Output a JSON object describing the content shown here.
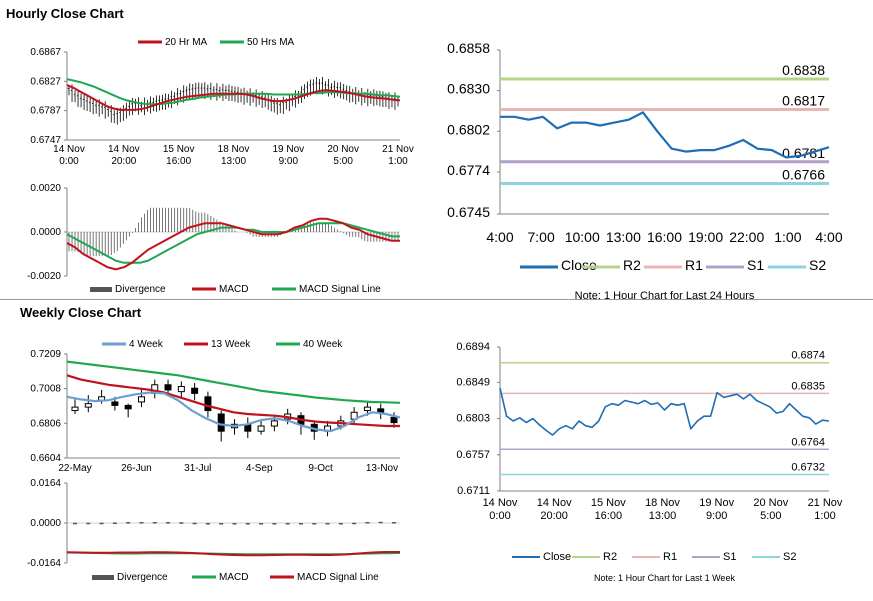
{
  "sections": {
    "hourly_title": "Hourly Close Chart",
    "weekly_title": "Weekly Close Chart"
  },
  "colors": {
    "ma20": "#c0121c",
    "ma50": "#1fa84f",
    "divergence": "#555555",
    "macd": "#c0121c",
    "signal": "#1fa84f",
    "close": "#1f6db3",
    "r2": "#b7d38a",
    "r1": "#e8b4b4",
    "s1": "#b1a0c7",
    "s2": "#8fd3e0",
    "w4": "#6d9ecf",
    "w13": "#c0121c",
    "w40": "#1fa84f"
  },
  "chart_data": [
    {
      "id": "hourly_price",
      "type": "candlestick",
      "legend": [
        "20 Hr MA",
        "50 Hrs MA"
      ],
      "y_ticks": [
        "0.6867",
        "0.6827",
        "0.6787",
        "0.6747"
      ],
      "ylim": [
        0.6747,
        0.6867
      ],
      "x_ticks": [
        {
          "l1": "14 Nov",
          "l2": "0:00"
        },
        {
          "l1": "14 Nov",
          "l2": "20:00"
        },
        {
          "l1": "15 Nov",
          "l2": "16:00"
        },
        {
          "l1": "18 Nov",
          "l2": "13:00"
        },
        {
          "l1": "19 Nov",
          "l2": "9:00"
        },
        {
          "l1": "20 Nov",
          "l2": "5:00"
        },
        {
          "l1": "21 Nov",
          "l2": "1:00"
        }
      ],
      "price": [
        0.6815,
        0.6806,
        0.68,
        0.6796,
        0.6792,
        0.679,
        0.6786,
        0.6778,
        0.6782,
        0.6789,
        0.6795,
        0.6792,
        0.6794,
        0.6796,
        0.6798,
        0.68,
        0.6804,
        0.6808,
        0.6812,
        0.6814,
        0.6815,
        0.6814,
        0.6813,
        0.6812,
        0.6812,
        0.681,
        0.6808,
        0.6806,
        0.6805,
        0.6803,
        0.6801,
        0.6795,
        0.6792,
        0.6796,
        0.6801,
        0.6806,
        0.6815,
        0.682,
        0.6822,
        0.682,
        0.6816,
        0.6816,
        0.6812,
        0.6808,
        0.6807,
        0.6805,
        0.6805,
        0.6804,
        0.6802,
        0.68,
        0.68
      ],
      "ma20": [
        0.6822,
        0.6818,
        0.6813,
        0.6808,
        0.6803,
        0.6798,
        0.6793,
        0.679,
        0.6788,
        0.6788,
        0.6788,
        0.6789,
        0.6791,
        0.6794,
        0.6797,
        0.68,
        0.6802,
        0.6804,
        0.6806,
        0.6807,
        0.6808,
        0.6809,
        0.681,
        0.681,
        0.681,
        0.681,
        0.681,
        0.6809,
        0.6807,
        0.6804,
        0.6802,
        0.68,
        0.68,
        0.6801,
        0.6803,
        0.6806,
        0.6809,
        0.6812,
        0.6814,
        0.6815,
        0.6814,
        0.6813,
        0.6812,
        0.681,
        0.6808,
        0.6806,
        0.6805,
        0.6804,
        0.6803,
        0.6802,
        0.6801
      ],
      "ma50": [
        0.683,
        0.6828,
        0.6826,
        0.6823,
        0.682,
        0.6816,
        0.6812,
        0.6808,
        0.6804,
        0.6801,
        0.6799,
        0.6797,
        0.6796,
        0.6796,
        0.6796,
        0.6797,
        0.6798,
        0.68,
        0.6802,
        0.6803,
        0.6805,
        0.6806,
        0.6807,
        0.6808,
        0.6809,
        0.6809,
        0.681,
        0.681,
        0.681,
        0.681,
        0.681,
        0.6809,
        0.6809,
        0.6809,
        0.6809,
        0.6809,
        0.681,
        0.6811,
        0.6811,
        0.6812,
        0.6812,
        0.6812,
        0.6811,
        0.6811,
        0.681,
        0.681,
        0.6809,
        0.6808,
        0.6808,
        0.6807,
        0.6806
      ]
    },
    {
      "id": "hourly_macd",
      "type": "macd",
      "legend": [
        "Divergence",
        "MACD",
        "MACD Signal Line"
      ],
      "y_ticks": [
        "0.0020",
        "0.0000",
        "-0.0020"
      ],
      "ylim": [
        -0.002,
        0.002
      ],
      "macd": [
        -0.0005,
        -0.0007,
        -0.001,
        -0.0012,
        -0.0014,
        -0.0016,
        -0.0017,
        -0.0016,
        -0.0014,
        -0.0011,
        -0.0008,
        -0.0006,
        -0.0004,
        -0.0002,
        0.0,
        0.0002,
        0.0003,
        0.0004,
        0.0004,
        0.0004,
        0.0003,
        0.0002,
        0.0001,
        0.0,
        -0.0001,
        -0.0001,
        -0.0001,
        0.0,
        0.0002,
        0.0003,
        0.0005,
        0.0006,
        0.0006,
        0.0005,
        0.0004,
        0.0002,
        0.0001,
        -0.0001,
        -0.0002,
        -0.0003,
        -0.0004,
        -0.0004
      ],
      "signal": [
        -0.0001,
        -0.0003,
        -0.0005,
        -0.0007,
        -0.0009,
        -0.0011,
        -0.0013,
        -0.0014,
        -0.0014,
        -0.0014,
        -0.0013,
        -0.0011,
        -0.0009,
        -0.0007,
        -0.0005,
        -0.0003,
        -0.0001,
        0.0,
        0.0001,
        0.0002,
        0.0002,
        0.0002,
        0.0001,
        0.0001,
        0.0,
        0.0,
        0.0,
        0.0,
        0.0001,
        0.0002,
        0.0003,
        0.0004,
        0.0004,
        0.0004,
        0.0004,
        0.0003,
        0.0002,
        0.0001,
        0.0,
        -0.0001,
        -0.0002,
        -0.0002
      ]
    },
    {
      "id": "hourly_close",
      "type": "line",
      "x_labels": [
        "4:00",
        "7:00",
        "10:00",
        "13:00",
        "16:00",
        "19:00",
        "22:00",
        "1:00",
        "4:00"
      ],
      "y_ticks": [
        "0.6858",
        "0.6830",
        "0.6802",
        "0.6774",
        "0.6745"
      ],
      "ylim": [
        0.6745,
        0.6858
      ],
      "close": [
        0.6812,
        0.6812,
        0.681,
        0.6812,
        0.6804,
        0.6808,
        0.6808,
        0.6806,
        0.6808,
        0.681,
        0.6815,
        0.6802,
        0.679,
        0.6788,
        0.6789,
        0.6789,
        0.6792,
        0.6796,
        0.679,
        0.6789,
        0.6784,
        0.6785,
        0.6788,
        0.6791
      ],
      "levels": [
        {
          "name": "R2",
          "value": 0.6838,
          "label": "0.6838"
        },
        {
          "name": "R1",
          "value": 0.6817,
          "label": "0.6817"
        },
        {
          "name": "S1",
          "value": 0.6781,
          "label": "0.6781"
        },
        {
          "name": "S2",
          "value": 0.6766,
          "label": "0.6766"
        }
      ],
      "legend": [
        "Close",
        "R2",
        "R1",
        "S1",
        "S2"
      ],
      "note": "Note: 1 Hour Chart for Last 24 Hours"
    },
    {
      "id": "weekly_price",
      "type": "candlestick",
      "legend": [
        "4 Week",
        "13 Week",
        "40 Week"
      ],
      "y_ticks": [
        "0.7209",
        "0.7008",
        "0.6806",
        "0.6604"
      ],
      "ylim": [
        0.6604,
        0.7209
      ],
      "x_ticks": [
        "22-May",
        "26-Jun",
        "31-Jul",
        "4-Sep",
        "9-Oct",
        "13-Nov"
      ],
      "w4": [
        0.696,
        0.6945,
        0.6935,
        0.694,
        0.696,
        0.6975,
        0.6985,
        0.698,
        0.694,
        0.688,
        0.6835,
        0.68,
        0.679,
        0.68,
        0.6825,
        0.6835,
        0.682,
        0.679,
        0.677,
        0.676,
        0.679,
        0.684,
        0.687,
        0.686,
        0.684
      ],
      "w13": [
        0.7085,
        0.706,
        0.7045,
        0.703,
        0.702,
        0.701,
        0.7,
        0.6985,
        0.696,
        0.6935,
        0.691,
        0.689,
        0.687,
        0.686,
        0.6855,
        0.685,
        0.684,
        0.6825,
        0.6815,
        0.681,
        0.6805,
        0.68,
        0.6795,
        0.679,
        0.679
      ],
      "w40": [
        0.7165,
        0.7155,
        0.7145,
        0.7135,
        0.7125,
        0.7115,
        0.7105,
        0.7095,
        0.7085,
        0.707,
        0.7055,
        0.704,
        0.7025,
        0.701,
        0.6995,
        0.6985,
        0.6975,
        0.6965,
        0.6955,
        0.6948,
        0.694,
        0.6935,
        0.693,
        0.6928,
        0.6925
      ],
      "candles": [
        {
          "o": 0.688,
          "c": 0.69,
          "h": 0.695,
          "l": 0.686
        },
        {
          "o": 0.69,
          "c": 0.692,
          "h": 0.697,
          "l": 0.687
        },
        {
          "o": 0.694,
          "c": 0.696,
          "h": 0.7,
          "l": 0.692
        },
        {
          "o": 0.693,
          "c": 0.691,
          "h": 0.696,
          "l": 0.688
        },
        {
          "o": 0.691,
          "c": 0.689,
          "h": 0.692,
          "l": 0.684
        },
        {
          "o": 0.693,
          "c": 0.696,
          "h": 0.7,
          "l": 0.69
        },
        {
          "o": 0.698,
          "c": 0.703,
          "h": 0.706,
          "l": 0.695
        },
        {
          "o": 0.703,
          "c": 0.7,
          "h": 0.706,
          "l": 0.698
        },
        {
          "o": 0.699,
          "c": 0.702,
          "h": 0.705,
          "l": 0.695
        },
        {
          "o": 0.701,
          "c": 0.698,
          "h": 0.704,
          "l": 0.694
        },
        {
          "o": 0.696,
          "c": 0.688,
          "h": 0.699,
          "l": 0.684
        },
        {
          "o": 0.686,
          "c": 0.676,
          "h": 0.688,
          "l": 0.67
        },
        {
          "o": 0.678,
          "c": 0.68,
          "h": 0.683,
          "l": 0.674
        },
        {
          "o": 0.68,
          "c": 0.676,
          "h": 0.684,
          "l": 0.672
        },
        {
          "o": 0.676,
          "c": 0.679,
          "h": 0.682,
          "l": 0.674
        },
        {
          "o": 0.679,
          "c": 0.682,
          "h": 0.685,
          "l": 0.676
        },
        {
          "o": 0.683,
          "c": 0.686,
          "h": 0.689,
          "l": 0.68
        },
        {
          "o": 0.685,
          "c": 0.68,
          "h": 0.687,
          "l": 0.674
        },
        {
          "o": 0.68,
          "c": 0.676,
          "h": 0.682,
          "l": 0.671
        },
        {
          "o": 0.676,
          "c": 0.679,
          "h": 0.682,
          "l": 0.673
        },
        {
          "o": 0.679,
          "c": 0.682,
          "h": 0.685,
          "l": 0.677
        },
        {
          "o": 0.683,
          "c": 0.687,
          "h": 0.69,
          "l": 0.68
        },
        {
          "o": 0.688,
          "c": 0.69,
          "h": 0.693,
          "l": 0.685
        },
        {
          "o": 0.689,
          "c": 0.687,
          "h": 0.692,
          "l": 0.683
        },
        {
          "o": 0.684,
          "c": 0.681,
          "h": 0.687,
          "l": 0.678
        }
      ]
    },
    {
      "id": "weekly_macd",
      "type": "macd",
      "legend": [
        "Divergence",
        "MACD",
        "MACD Signal Line"
      ],
      "y_ticks": [
        "0.0164",
        "0.0000",
        "-0.0164"
      ],
      "ylim": [
        -0.0164,
        0.0164
      ],
      "macd": [
        -0.012,
        -0.0121,
        -0.0122,
        -0.0122,
        -0.0121,
        -0.0121,
        -0.012,
        -0.012,
        -0.0121,
        -0.0123,
        -0.0126,
        -0.0129,
        -0.0131,
        -0.0132,
        -0.0132,
        -0.0131,
        -0.013,
        -0.013,
        -0.0131,
        -0.0131,
        -0.0129,
        -0.0125,
        -0.0121,
        -0.0119,
        -0.0119
      ],
      "signal": [
        -0.0121,
        -0.0122,
        -0.0123,
        -0.0124,
        -0.0125,
        -0.0125,
        -0.0124,
        -0.0124,
        -0.0124,
        -0.0124,
        -0.0125,
        -0.0126,
        -0.0127,
        -0.0128,
        -0.0128,
        -0.0128,
        -0.0128,
        -0.0128,
        -0.0128,
        -0.0128,
        -0.0128,
        -0.0126,
        -0.0125,
        -0.0124,
        -0.0123
      ],
      "divergence": [
        0.0001,
        0.0001,
        0.0001,
        0.0002,
        0.0004,
        0.0004,
        0.0004,
        0.0004,
        0.0003,
        0.0001,
        -0.0001,
        -0.0003,
        -0.0004,
        -0.0004,
        -0.0004,
        -0.0003,
        -0.0002,
        -0.0002,
        -0.0003,
        -0.0003,
        -0.0001,
        0.0001,
        0.0004,
        0.0005,
        0.0004
      ]
    },
    {
      "id": "weekly_close",
      "type": "line",
      "x_ticks": [
        {
          "l1": "14 Nov",
          "l2": "0:00"
        },
        {
          "l1": "14 Nov",
          "l2": "20:00"
        },
        {
          "l1": "15 Nov",
          "l2": "16:00"
        },
        {
          "l1": "18 Nov",
          "l2": "13:00"
        },
        {
          "l1": "19 Nov",
          "l2": "9:00"
        },
        {
          "l1": "20 Nov",
          "l2": "5:00"
        },
        {
          "l1": "21 Nov",
          "l2": "1:00"
        }
      ],
      "y_ticks": [
        "0.6894",
        "0.6849",
        "0.6803",
        "0.6757",
        "0.6711"
      ],
      "ylim": [
        0.6711,
        0.6894
      ],
      "close": [
        0.6842,
        0.6806,
        0.68,
        0.6804,
        0.6798,
        0.6803,
        0.6795,
        0.6788,
        0.6782,
        0.679,
        0.6794,
        0.679,
        0.68,
        0.6794,
        0.6792,
        0.68,
        0.6818,
        0.6822,
        0.682,
        0.6826,
        0.6824,
        0.6822,
        0.6826,
        0.6821,
        0.6823,
        0.6814,
        0.6822,
        0.682,
        0.6822,
        0.679,
        0.68,
        0.6806,
        0.6806,
        0.6836,
        0.683,
        0.6832,
        0.6834,
        0.6828,
        0.6834,
        0.6826,
        0.6822,
        0.6818,
        0.681,
        0.6812,
        0.6822,
        0.6814,
        0.6806,
        0.6804,
        0.6796,
        0.6801,
        0.68
      ],
      "levels": [
        {
          "name": "R2",
          "value": 0.6874,
          "label": "0.6874"
        },
        {
          "name": "R1",
          "value": 0.6835,
          "label": "0.6835"
        },
        {
          "name": "S1",
          "value": 0.6764,
          "label": "0.6764"
        },
        {
          "name": "S2",
          "value": 0.6732,
          "label": "0.6732"
        }
      ],
      "legend": [
        "Close",
        "R2",
        "R1",
        "S1",
        "S2"
      ],
      "note": "Note: 1 Hour Chart for Last 1 Week"
    }
  ]
}
